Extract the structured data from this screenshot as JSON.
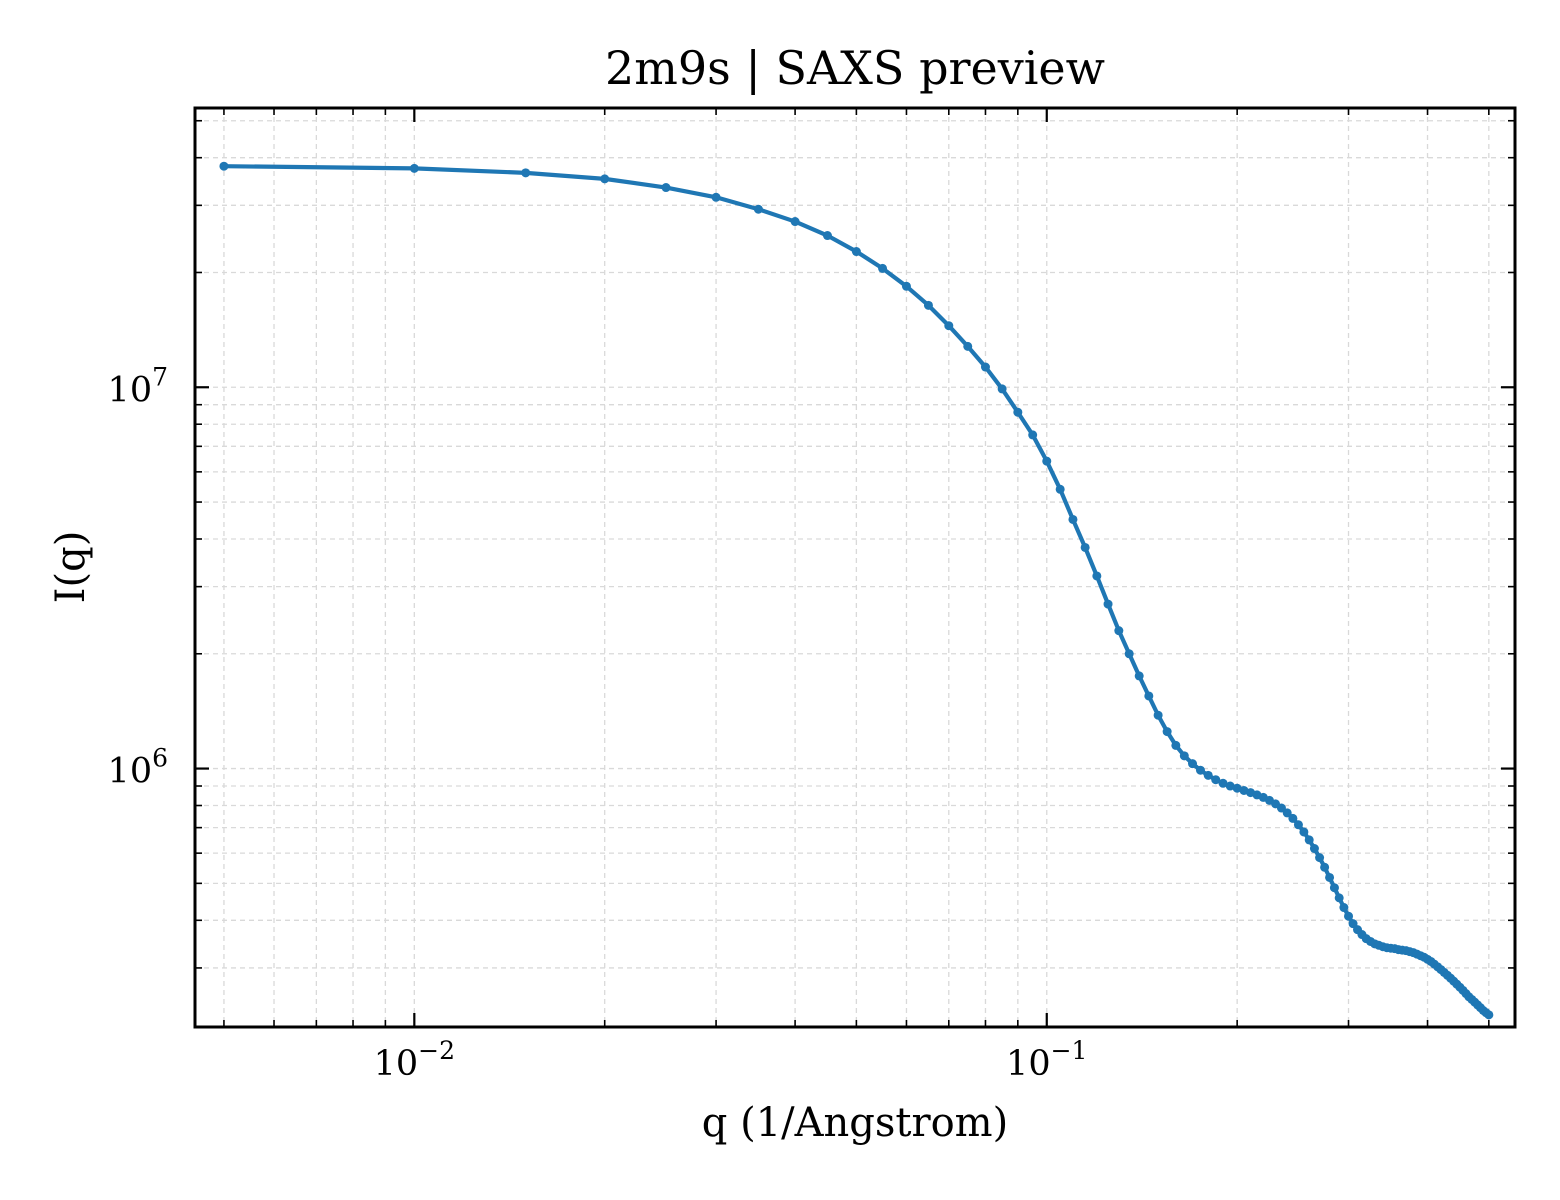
{
  "chart_data": {
    "type": "line",
    "title": "2m9s | SAXS preview",
    "xlabel": "q (1/Angstrom)",
    "ylabel": "I(q)",
    "xscale": "log",
    "yscale": "log",
    "xlim": [
      0.0045,
      0.55
    ],
    "ylim": [
      210000,
      54000000
    ],
    "grid": true,
    "legend": "none",
    "colors": {
      "line": "#1f77b4",
      "grid": "#d9d9d9",
      "axes": "#000000"
    },
    "x_ticks": [
      {
        "value": 0.01,
        "base": "10",
        "exp": "−2"
      },
      {
        "value": 0.1,
        "base": "10",
        "exp": "−1"
      }
    ],
    "y_ticks": [
      {
        "value": 1000000,
        "base": "10",
        "exp": "6"
      },
      {
        "value": 10000000,
        "base": "10",
        "exp": "7"
      }
    ],
    "series": [
      {
        "x": [
          0.005,
          0.01,
          0.015,
          0.02,
          0.025,
          0.03,
          0.035,
          0.04,
          0.045,
          0.05,
          0.055,
          0.06,
          0.065,
          0.07,
          0.075,
          0.08,
          0.085,
          0.09,
          0.095,
          0.1,
          0.105,
          0.11,
          0.115,
          0.12,
          0.125,
          0.13,
          0.135,
          0.14,
          0.145,
          0.15,
          0.155,
          0.16,
          0.165,
          0.17,
          0.175,
          0.18,
          0.185,
          0.19,
          0.195,
          0.2,
          0.205,
          0.21,
          0.215,
          0.22,
          0.225,
          0.23,
          0.235,
          0.24,
          0.245,
          0.25,
          0.255,
          0.26,
          0.265,
          0.27,
          0.275,
          0.28,
          0.285,
          0.29,
          0.295,
          0.3,
          0.305,
          0.31,
          0.315,
          0.32,
          0.325,
          0.33,
          0.335,
          0.34,
          0.345,
          0.35,
          0.355,
          0.36,
          0.365,
          0.37,
          0.375,
          0.38,
          0.385,
          0.39,
          0.395,
          0.4,
          0.405,
          0.41,
          0.415,
          0.42,
          0.425,
          0.43,
          0.435,
          0.44,
          0.445,
          0.45,
          0.455,
          0.46,
          0.465,
          0.47,
          0.475,
          0.48,
          0.485,
          0.49,
          0.495,
          0.5
        ],
        "y": [
          38000000,
          37500000,
          36500000,
          35200000,
          33400000,
          31500000,
          29300000,
          27200000,
          25000000,
          22700000,
          20500000,
          18400000,
          16400000,
          14500000,
          12800000,
          11300000,
          9900000,
          8600000,
          7500000,
          6400000,
          5400000,
          4500000,
          3800000,
          3200000,
          2700000,
          2300000,
          2000000,
          1750000,
          1550000,
          1380000,
          1250000,
          1150000,
          1080000,
          1030000,
          990000,
          960000,
          935000,
          915000,
          900000,
          888000,
          876000,
          865000,
          853000,
          840000,
          825000,
          808000,
          788000,
          765000,
          740000,
          712000,
          682000,
          650000,
          617000,
          584000,
          551000,
          518000,
          487000,
          458000,
          432000,
          410000,
          392000,
          378000,
          367000,
          358000,
          352000,
          347000,
          344000,
          341000,
          339000,
          338000,
          337000,
          335000,
          334000,
          333000,
          331000,
          329000,
          326000,
          323000,
          320000,
          316000,
          312000,
          307000,
          302000,
          297000,
          292000,
          287000,
          282000,
          277000,
          272000,
          267000,
          262000,
          257000,
          252000,
          248000,
          244000,
          240000,
          236000,
          232000,
          229000,
          226000
        ]
      }
    ]
  }
}
